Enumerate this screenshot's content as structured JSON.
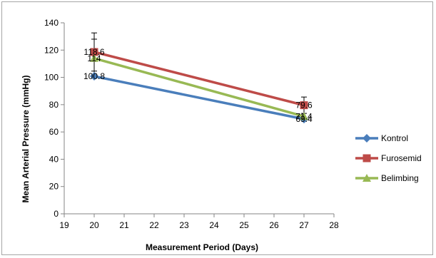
{
  "chart_data": {
    "type": "line",
    "title": "",
    "xlabel": "Measurement Period (Days)",
    "ylabel": "Mean Arterial Pressure (mmHg)",
    "xlim": [
      19,
      28
    ],
    "ylim": [
      0,
      140
    ],
    "xticks": [
      19,
      20,
      21,
      22,
      23,
      24,
      25,
      26,
      27,
      28
    ],
    "yticks": [
      0,
      20,
      40,
      60,
      80,
      100,
      120,
      140
    ],
    "grid": false,
    "legend": "right",
    "series": [
      {
        "name": "Kontrol",
        "color": "#4a7ebb",
        "marker": "diamond",
        "x": [
          20,
          27
        ],
        "y": [
          100.8,
          69.4
        ],
        "labels": [
          "100.8",
          "69.4"
        ],
        "error": [
          0,
          0
        ]
      },
      {
        "name": "Furosemid",
        "color": "#be4b48",
        "marker": "square",
        "x": [
          20,
          27
        ],
        "y": [
          118.6,
          79.6
        ],
        "labels": [
          "118.6",
          "79.6"
        ],
        "error": [
          14,
          6
        ]
      },
      {
        "name": "Belimbing",
        "color": "#98b954",
        "marker": "triangle",
        "x": [
          20,
          27
        ],
        "y": [
          114,
          71.4
        ],
        "labels": [
          "114",
          "71.4"
        ],
        "error": [
          14,
          0
        ]
      }
    ]
  }
}
